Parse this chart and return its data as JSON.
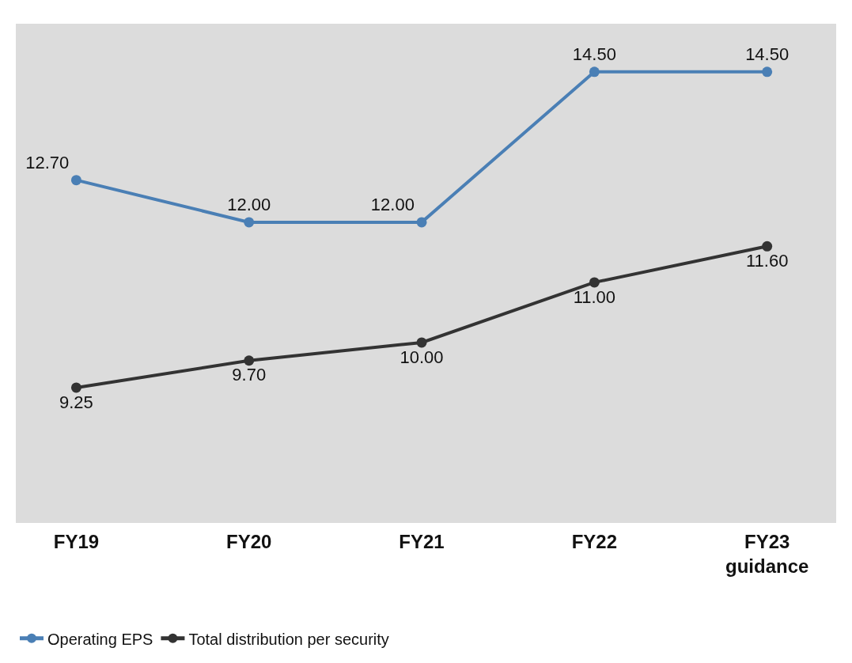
{
  "chart_data": {
    "type": "line",
    "categories": [
      "FY19",
      "FY20",
      "FY21",
      "FY22",
      "FY23\nguidance"
    ],
    "series": [
      {
        "name": "Operating EPS",
        "color": "#4a7fb5",
        "values": [
          12.7,
          12.0,
          12.0,
          14.5,
          14.5
        ],
        "value_labels": [
          "12.70",
          "12.00",
          "12.00",
          "14.50",
          "14.50"
        ]
      },
      {
        "name": "Total distribution per security",
        "color": "#333333",
        "values": [
          9.25,
          9.7,
          10.0,
          11.0,
          11.6
        ],
        "value_labels": [
          "9.25",
          "9.70",
          "10.00",
          "11.00",
          "11.60"
        ]
      }
    ],
    "marker": "circle",
    "line_style": "solid",
    "grid": false,
    "legend": "bottom left"
  }
}
